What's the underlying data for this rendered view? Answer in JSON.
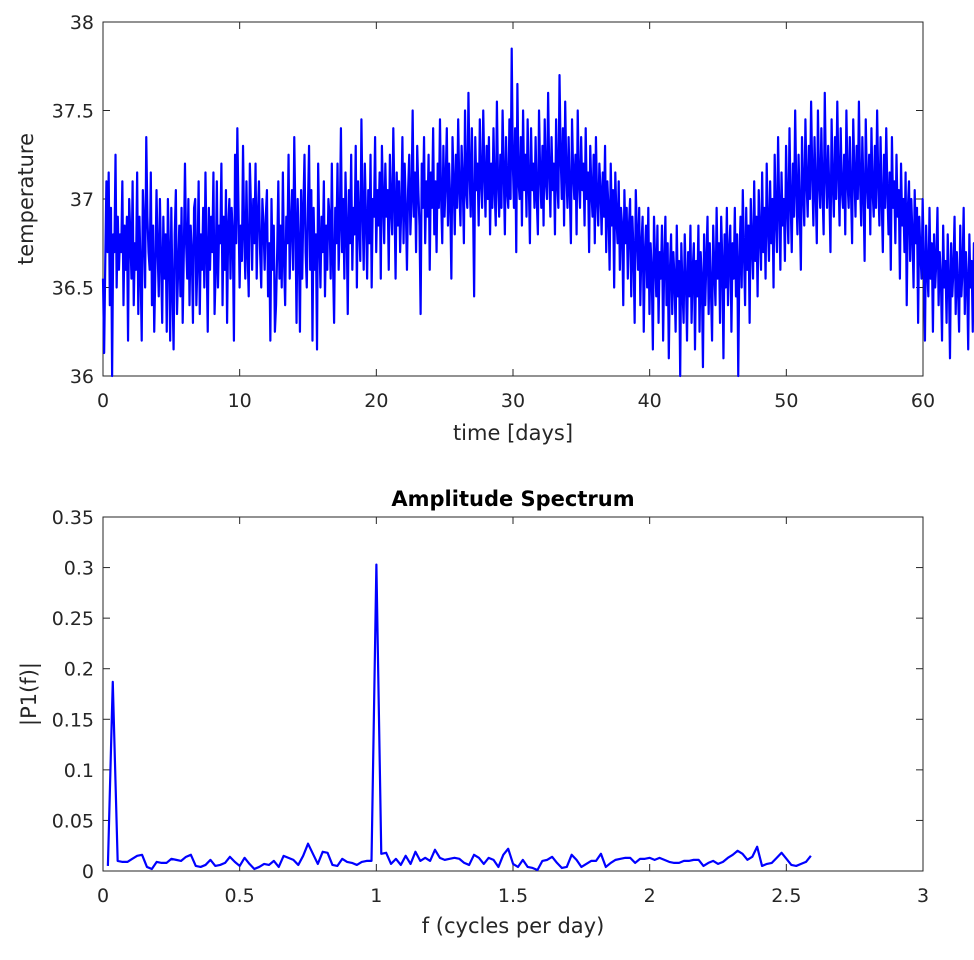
{
  "line_color": "#0000ff",
  "axis_color": "#262626",
  "chart_data": [
    {
      "type": "line",
      "title": "",
      "xlabel": "time [days]",
      "ylabel": "temperature",
      "xlim": [
        0,
        60
      ],
      "ylim": [
        36,
        38
      ],
      "xticks": [
        0,
        10,
        20,
        30,
        40,
        50,
        60
      ],
      "xtick_labels": [
        "0",
        "10",
        "20",
        "30",
        "40",
        "50",
        "60"
      ],
      "yticks": [
        36,
        36.5,
        37,
        37.5,
        38
      ],
      "ytick_labels": [
        "36",
        "36.5",
        "37",
        "37.5",
        "38"
      ],
      "grid": false,
      "series": [
        {
          "x_start": 0,
          "x_step": 0.0833,
          "values": [
            36.55,
            36.13,
            36.65,
            37.1,
            36.7,
            37.15,
            36.4,
            36.95,
            36.0,
            36.8,
            36.7,
            37.25,
            36.5,
            36.9,
            36.6,
            36.8,
            36.7,
            37.1,
            36.4,
            36.85,
            36.6,
            36.9,
            36.2,
            37.0,
            36.8,
            36.55,
            37.1,
            36.4,
            36.75,
            36.6,
            37.15,
            36.35,
            36.9,
            36.6,
            36.2,
            37.05,
            36.85,
            36.5,
            37.35,
            36.9,
            36.7,
            36.6,
            37.15,
            36.4,
            36.85,
            36.25,
            36.6,
            37.05,
            36.7,
            36.45,
            37.0,
            36.65,
            36.3,
            36.9,
            36.55,
            36.8,
            36.25,
            37.0,
            36.7,
            36.2,
            36.95,
            36.5,
            36.15,
            36.8,
            37.05,
            36.35,
            36.6,
            36.85,
            36.45,
            36.95,
            36.3,
            36.7,
            37.2,
            36.75,
            36.55,
            37.0,
            36.4,
            36.85,
            36.7,
            36.3,
            36.95,
            37.0,
            36.4,
            36.65,
            37.1,
            36.35,
            36.8,
            36.6,
            36.95,
            36.5,
            37.15,
            36.7,
            36.25,
            36.95,
            36.6,
            36.9,
            36.7,
            37.15,
            36.35,
            36.6,
            37.1,
            36.5,
            36.85,
            36.75,
            37.2,
            36.4,
            36.9,
            36.6,
            37.05,
            36.3,
            36.85,
            37.0,
            36.55,
            36.95,
            36.8,
            36.2,
            37.25,
            36.75,
            37.4,
            36.95,
            36.5,
            36.85,
            36.65,
            37.3,
            36.8,
            36.55,
            37.1,
            36.7,
            36.45,
            37.2,
            36.95,
            36.6,
            37.0,
            36.75,
            37.2,
            36.55,
            36.9,
            37.1,
            36.7,
            36.5,
            37.0,
            36.85,
            36.6,
            36.9,
            37.05,
            36.45,
            36.75,
            36.2,
            37.0,
            36.6,
            36.85,
            36.25,
            36.4,
            36.7,
            37.1,
            36.55,
            36.85,
            36.5,
            37.15,
            36.65,
            36.4,
            36.9,
            36.75,
            37.25,
            36.55,
            36.85,
            37.05,
            36.6,
            37.35,
            36.9,
            36.3,
            37.0,
            36.75,
            36.25,
            37.05,
            36.55,
            36.95,
            37.25,
            36.7,
            36.5,
            36.95,
            37.3,
            36.6,
            37.05,
            36.2,
            36.95,
            36.6,
            36.8,
            36.15,
            37.2,
            36.8,
            36.5,
            36.9,
            36.7,
            37.1,
            36.45,
            36.85,
            36.6,
            37.0,
            36.9,
            36.55,
            37.2,
            36.65,
            36.3,
            36.95,
            36.75,
            37.2,
            36.6,
            36.85,
            37.4,
            36.7,
            37.0,
            36.55,
            37.15,
            36.85,
            36.35,
            37.05,
            36.75,
            37.25,
            36.6,
            36.95,
            36.8,
            37.3,
            36.5,
            37.1,
            36.85,
            36.65,
            37.45,
            36.95,
            36.6,
            37.2,
            36.9,
            36.55,
            37.05,
            36.75,
            37.25,
            36.5,
            37.0,
            36.9,
            37.35,
            36.7,
            37.05,
            36.85,
            37.15,
            36.55,
            37.3,
            37.0,
            36.75,
            37.2,
            36.9,
            37.05,
            36.6,
            37.25,
            36.95,
            36.8,
            37.4,
            37.0,
            36.55,
            37.15,
            36.85,
            37.1,
            36.7,
            36.95,
            37.35,
            36.75,
            37.2,
            36.95,
            36.6,
            37.05,
            37.25,
            36.8,
            37.0,
            37.5,
            36.9,
            37.15,
            36.7,
            37.3,
            37.05,
            36.85,
            36.35,
            37.2,
            36.95,
            37.35,
            36.75,
            37.1,
            36.9,
            37.25,
            36.6,
            37.15,
            36.95,
            37.4,
            36.8,
            37.1,
            36.7,
            37.2,
            36.95,
            37.45,
            37.0,
            36.75,
            37.3,
            36.9,
            37.1,
            37.4,
            36.85,
            37.2,
            37.0,
            36.55,
            37.35,
            37.1,
            36.8,
            37.25,
            36.95,
            37.45,
            37.05,
            36.85,
            37.3,
            37.1,
            36.75,
            37.5,
            37.05,
            36.95,
            37.6,
            37.15,
            36.9,
            37.4,
            37.0,
            36.45,
            37.35,
            37.05,
            37.2,
            36.85,
            37.45,
            37.1,
            36.95,
            37.5,
            37.15,
            36.9,
            37.3,
            37.0,
            37.35,
            36.8,
            37.2,
            36.95,
            37.4,
            37.05,
            36.85,
            37.55,
            37.1,
            36.9,
            37.25,
            36.95,
            37.5,
            37.15,
            36.8,
            37.35,
            37.05,
            36.95,
            37.45,
            37.0,
            37.85,
            37.2,
            36.95,
            37.4,
            36.7,
            37.65,
            37.1,
            37.0,
            37.35,
            36.85,
            37.5,
            37.05,
            37.25,
            36.9,
            37.45,
            37.1,
            36.75,
            37.4,
            37.05,
            37.2,
            36.95,
            37.35,
            37.0,
            36.8,
            37.5,
            37.15,
            36.95,
            37.3,
            36.85,
            37.45,
            37.1,
            37.0,
            37.6,
            37.15,
            36.9,
            37.35,
            37.05,
            37.2,
            36.8,
            37.45,
            37.1,
            36.95,
            37.7,
            37.25,
            37.0,
            37.4,
            36.85,
            37.55,
            37.15,
            36.95,
            37.35,
            37.05,
            36.75,
            37.45,
            37.15,
            37.0,
            37.25,
            36.8,
            37.5,
            37.1,
            36.95,
            37.35,
            37.05,
            37.2,
            36.85,
            37.4,
            37.0,
            37.15,
            36.7,
            37.3,
            37.05,
            36.9,
            37.25,
            36.75,
            37.35,
            37.0,
            36.85,
            37.2,
            37.05,
            36.8,
            37.15,
            36.9,
            37.3,
            36.7,
            37.1,
            36.95,
            36.6,
            37.2,
            36.85,
            37.05,
            36.5,
            37.15,
            36.9,
            36.75,
            37.1,
            36.6,
            36.95,
            36.85,
            36.4,
            37.05,
            36.75,
            36.95,
            36.55,
            36.85,
            37.0,
            36.45,
            36.9,
            36.7,
            36.3,
            37.05,
            36.8,
            36.6,
            36.95,
            36.4,
            36.75,
            36.9,
            36.25,
            36.7,
            36.85,
            36.5,
            36.95,
            36.35,
            36.75,
            36.6,
            36.15,
            36.9,
            36.65,
            36.45,
            36.85,
            36.3,
            36.7,
            36.55,
            36.85,
            36.2,
            36.65,
            36.9,
            36.4,
            36.75,
            36.1,
            36.6,
            36.8,
            36.35,
            36.7,
            36.55,
            36.25,
            36.85,
            36.45,
            36.65,
            36.0,
            36.75,
            36.5,
            36.3,
            36.8,
            36.55,
            36.2,
            36.7,
            36.45,
            36.85,
            36.3,
            36.6,
            36.75,
            36.15,
            36.65,
            36.45,
            36.85,
            36.25,
            36.7,
            36.55,
            36.05,
            36.8,
            36.4,
            36.65,
            36.9,
            36.35,
            36.75,
            36.5,
            36.2,
            36.85,
            36.6,
            36.4,
            36.95,
            36.55,
            36.75,
            36.3,
            36.9,
            36.65,
            36.1,
            36.8,
            36.5,
            36.95,
            36.4,
            36.7,
            36.85,
            36.25,
            36.75,
            36.55,
            36.95,
            36.45,
            36.8,
            36.0,
            36.65,
            36.9,
            36.5,
            37.05,
            36.7,
            36.4,
            36.95,
            36.6,
            36.85,
            36.3,
            37.0,
            36.75,
            36.55,
            37.1,
            36.65,
            36.9,
            36.45,
            37.05,
            36.8,
            36.6,
            37.15,
            36.7,
            36.95,
            36.55,
            37.2,
            36.85,
            36.65,
            37.1,
            36.75,
            37.0,
            36.5,
            37.25,
            36.9,
            36.7,
            37.35,
            36.95,
            36.6,
            37.15,
            36.85,
            37.0,
            36.65,
            37.3,
            36.95,
            36.75,
            37.4,
            37.0,
            36.7,
            37.2,
            36.9,
            37.5,
            37.05,
            36.8,
            37.25,
            36.95,
            36.6,
            37.35,
            37.05,
            36.85,
            37.45,
            37.1,
            36.9,
            37.3,
            37.0,
            37.55,
            37.15,
            36.85,
            37.35,
            37.05,
            36.75,
            37.5,
            37.1,
            36.95,
            37.4,
            37.05,
            36.8,
            37.6,
            37.15,
            36.95,
            37.3,
            37.05,
            36.7,
            37.45,
            37.1,
            36.9,
            37.35,
            37.0,
            37.55,
            37.15,
            36.85,
            37.4,
            37.05,
            36.95,
            37.25,
            36.8,
            37.5,
            37.1,
            36.95,
            37.35,
            37.05,
            36.75,
            37.45,
            37.15,
            36.9,
            37.3,
            37.0,
            37.55,
            37.1,
            36.85,
            37.35,
            37.05,
            36.65,
            37.45,
            37.1,
            36.95,
            37.25,
            36.8,
            37.4,
            37.05,
            36.9,
            37.3,
            36.95,
            37.5,
            37.1,
            36.85,
            37.35,
            37.0,
            36.7,
            37.25,
            36.95,
            37.4,
            37.05,
            36.8,
            37.15,
            36.6,
            37.35,
            36.95,
            37.1,
            36.75,
            37.25,
            36.9,
            37.05,
            36.55,
            37.2,
            36.85,
            37.0,
            36.7,
            37.15,
            36.4,
            36.95,
            37.1,
            36.65,
            37.0,
            36.8,
            36.5,
            37.05,
            36.75,
            36.95,
            36.3,
            36.9,
            36.7,
            36.55,
            37.0,
            36.65,
            36.2,
            36.85,
            36.6,
            36.45,
            36.95,
            36.55,
            36.75,
            36.25,
            36.8,
            36.5,
            36.65,
            36.95,
            36.4,
            36.7,
            36.55,
            36.2,
            36.85,
            36.5,
            36.65,
            36.3,
            36.8,
            36.55,
            36.1,
            36.75,
            36.45,
            36.6,
            36.9,
            36.35,
            36.7,
            36.5,
            36.25,
            36.85,
            36.45,
            36.6,
            36.95,
            36.35,
            36.7,
            36.55,
            36.15,
            36.8,
            36.5,
            36.65,
            36.25,
            36.75,
            36.45,
            36.0
          ]
        }
      ]
    },
    {
      "type": "line",
      "title": "Amplitude Spectrum",
      "xlabel": "f (cycles per day)",
      "ylabel": "|P1(f)|",
      "xlim": [
        0,
        3
      ],
      "ylim": [
        0,
        0.35
      ],
      "xticks": [
        0,
        0.5,
        1,
        1.5,
        2,
        2.5,
        3
      ],
      "xtick_labels": [
        "0",
        "0.5",
        "1",
        "1.5",
        "2",
        "2.5",
        "3"
      ],
      "yticks": [
        0,
        0.05,
        0.1,
        0.15,
        0.2,
        0.25,
        0.3,
        0.35
      ],
      "ytick_labels": [
        "0",
        "0.05",
        "0.1",
        "0.15",
        "0.2",
        "0.25",
        "0.3",
        "0.35"
      ],
      "grid": false,
      "series": [
        {
          "x_start": 0.0179,
          "x_step": 0.01786,
          "values": [
            0.005,
            0.187,
            0.01,
            0.009,
            0.009,
            0.012,
            0.015,
            0.016,
            0.004,
            0.002,
            0.009,
            0.008,
            0.008,
            0.012,
            0.011,
            0.01,
            0.014,
            0.016,
            0.005,
            0.004,
            0.006,
            0.011,
            0.005,
            0.006,
            0.008,
            0.014,
            0.009,
            0.005,
            0.013,
            0.007,
            0.002,
            0.004,
            0.007,
            0.006,
            0.01,
            0.004,
            0.015,
            0.013,
            0.011,
            0.006,
            0.015,
            0.027,
            0.017,
            0.007,
            0.019,
            0.018,
            0.006,
            0.005,
            0.012,
            0.009,
            0.008,
            0.006,
            0.009,
            0.01,
            0.01,
            0.303,
            0.017,
            0.018,
            0.007,
            0.012,
            0.006,
            0.015,
            0.007,
            0.019,
            0.01,
            0.013,
            0.01,
            0.021,
            0.013,
            0.011,
            0.012,
            0.013,
            0.012,
            0.008,
            0.006,
            0.016,
            0.013,
            0.007,
            0.013,
            0.011,
            0.004,
            0.016,
            0.022,
            0.007,
            0.004,
            0.011,
            0.004,
            0.003,
            0.001,
            0.01,
            0.011,
            0.014,
            0.008,
            0.003,
            0.004,
            0.016,
            0.011,
            0.004,
            0.007,
            0.01,
            0.01,
            0.017,
            0.004,
            0.008,
            0.011,
            0.012,
            0.013,
            0.013,
            0.008,
            0.012,
            0.012,
            0.013,
            0.011,
            0.013,
            0.011,
            0.009,
            0.008,
            0.008,
            0.01,
            0.01,
            0.011,
            0.011,
            0.005,
            0.008,
            0.01,
            0.007,
            0.009,
            0.013,
            0.016,
            0.02,
            0.017,
            0.011,
            0.014,
            0.024,
            0.005,
            0.007,
            0.008,
            0.013,
            0.018,
            0.012,
            0.006,
            0.005,
            0.007,
            0.009,
            0.015
          ]
        }
      ]
    }
  ]
}
